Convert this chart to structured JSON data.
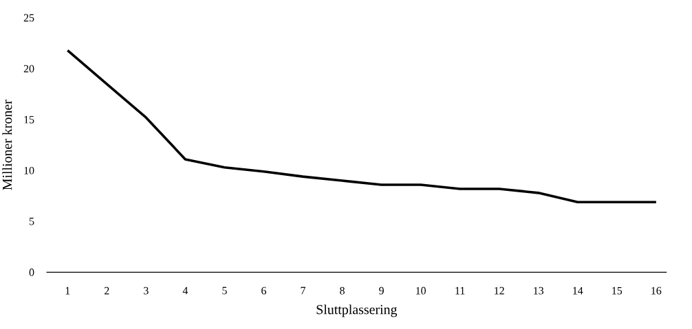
{
  "chart_data": {
    "type": "line",
    "xlabel": "Sluttplassering",
    "ylabel": "Millioner kroner",
    "categories": [
      "1",
      "2",
      "3",
      "4",
      "5",
      "6",
      "7",
      "8",
      "9",
      "10",
      "11",
      "12",
      "13",
      "14",
      "15",
      "16"
    ],
    "series": [
      {
        "color": "#000000",
        "values": [
          21.8,
          18.5,
          15.2,
          11.1,
          10.3,
          9.9,
          9.4,
          9.0,
          8.6,
          8.6,
          8.2,
          8.2,
          7.8,
          6.9,
          6.9,
          6.9
        ]
      }
    ],
    "ylim": [
      0,
      25
    ],
    "yticks": [
      0,
      5,
      10,
      15,
      20,
      25
    ],
    "grid": false,
    "marker": "none",
    "line_style": "solid"
  }
}
